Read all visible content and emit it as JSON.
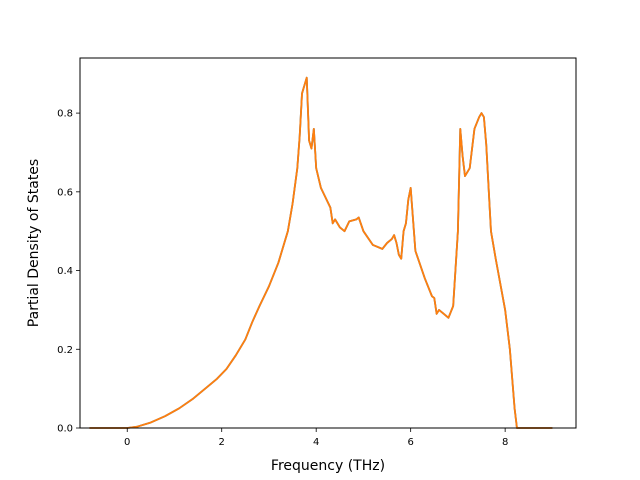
{
  "chart_data": {
    "type": "line",
    "title": "",
    "xlabel": "Frequency (THz)",
    "ylabel": "Partial Density of States",
    "xlim": [
      -1.0,
      9.5
    ],
    "ylim": [
      0.0,
      0.94
    ],
    "xticks": [
      0,
      2,
      4,
      6,
      8
    ],
    "yticks": [
      0.0,
      0.2,
      0.4,
      0.6,
      0.8
    ],
    "xtick_labels": [
      "0",
      "2",
      "4",
      "6",
      "8"
    ],
    "ytick_labels": [
      "0.0",
      "0.2",
      "0.4",
      "0.6",
      "0.8"
    ],
    "grid": false,
    "legend": "none",
    "series": [
      {
        "color": "#1f77b4",
        "x": [
          -0.8,
          0.0,
          0.2,
          0.5,
          0.8,
          1.1,
          1.4,
          1.7,
          1.9,
          2.1,
          2.3,
          2.5,
          2.65,
          2.8,
          3.0,
          3.2,
          3.4,
          3.5,
          3.6,
          3.65,
          3.7,
          3.75,
          3.8,
          3.85,
          3.9,
          3.95,
          4.0,
          4.1,
          4.3,
          4.35,
          4.4,
          4.5,
          4.6,
          4.7,
          4.85,
          4.9,
          5.0,
          5.2,
          5.4,
          5.5,
          5.6,
          5.65,
          5.7,
          5.75,
          5.8,
          5.85,
          5.9,
          5.95,
          6.0,
          6.1,
          6.3,
          6.45,
          6.5,
          6.55,
          6.6,
          6.7,
          6.8,
          6.9,
          7.0,
          7.05,
          7.1,
          7.15,
          7.25,
          7.35,
          7.45,
          7.5,
          7.55,
          7.6,
          7.7,
          7.8,
          8.0,
          8.1,
          8.2,
          8.25,
          9.0
        ],
        "values": [
          0.0,
          0.0,
          0.003,
          0.014,
          0.03,
          0.05,
          0.075,
          0.105,
          0.125,
          0.15,
          0.185,
          0.225,
          0.27,
          0.31,
          0.36,
          0.42,
          0.5,
          0.57,
          0.66,
          0.74,
          0.85,
          0.87,
          0.89,
          0.73,
          0.71,
          0.76,
          0.66,
          0.61,
          0.56,
          0.52,
          0.53,
          0.51,
          0.5,
          0.525,
          0.53,
          0.535,
          0.5,
          0.465,
          0.455,
          0.47,
          0.48,
          0.49,
          0.47,
          0.44,
          0.43,
          0.5,
          0.52,
          0.58,
          0.61,
          0.45,
          0.38,
          0.335,
          0.33,
          0.29,
          0.3,
          0.29,
          0.28,
          0.31,
          0.5,
          0.76,
          0.69,
          0.64,
          0.66,
          0.76,
          0.79,
          0.8,
          0.79,
          0.72,
          0.5,
          0.43,
          0.3,
          0.2,
          0.05,
          0.0,
          0.0
        ]
      },
      {
        "color": "#ff7f0e",
        "x": [
          -0.8,
          0.0,
          0.2,
          0.5,
          0.8,
          1.1,
          1.4,
          1.7,
          1.9,
          2.1,
          2.3,
          2.5,
          2.65,
          2.8,
          3.0,
          3.2,
          3.4,
          3.5,
          3.6,
          3.65,
          3.7,
          3.75,
          3.8,
          3.85,
          3.9,
          3.95,
          4.0,
          4.1,
          4.3,
          4.35,
          4.4,
          4.5,
          4.6,
          4.7,
          4.85,
          4.9,
          5.0,
          5.2,
          5.4,
          5.5,
          5.6,
          5.65,
          5.7,
          5.75,
          5.8,
          5.85,
          5.9,
          5.95,
          6.0,
          6.1,
          6.3,
          6.45,
          6.5,
          6.55,
          6.6,
          6.7,
          6.8,
          6.9,
          7.0,
          7.05,
          7.1,
          7.15,
          7.25,
          7.35,
          7.45,
          7.5,
          7.55,
          7.6,
          7.7,
          7.8,
          8.0,
          8.1,
          8.2,
          8.25,
          9.0
        ],
        "values": [
          0.0,
          0.0,
          0.003,
          0.014,
          0.03,
          0.05,
          0.075,
          0.105,
          0.125,
          0.15,
          0.185,
          0.225,
          0.27,
          0.31,
          0.36,
          0.42,
          0.5,
          0.57,
          0.66,
          0.74,
          0.85,
          0.87,
          0.89,
          0.73,
          0.71,
          0.76,
          0.66,
          0.61,
          0.56,
          0.52,
          0.53,
          0.51,
          0.5,
          0.525,
          0.53,
          0.535,
          0.5,
          0.465,
          0.455,
          0.47,
          0.48,
          0.49,
          0.47,
          0.44,
          0.43,
          0.5,
          0.52,
          0.58,
          0.61,
          0.45,
          0.38,
          0.335,
          0.33,
          0.29,
          0.3,
          0.29,
          0.28,
          0.31,
          0.5,
          0.76,
          0.69,
          0.64,
          0.66,
          0.76,
          0.79,
          0.8,
          0.79,
          0.72,
          0.5,
          0.43,
          0.3,
          0.2,
          0.05,
          0.0,
          0.0
        ]
      }
    ]
  }
}
